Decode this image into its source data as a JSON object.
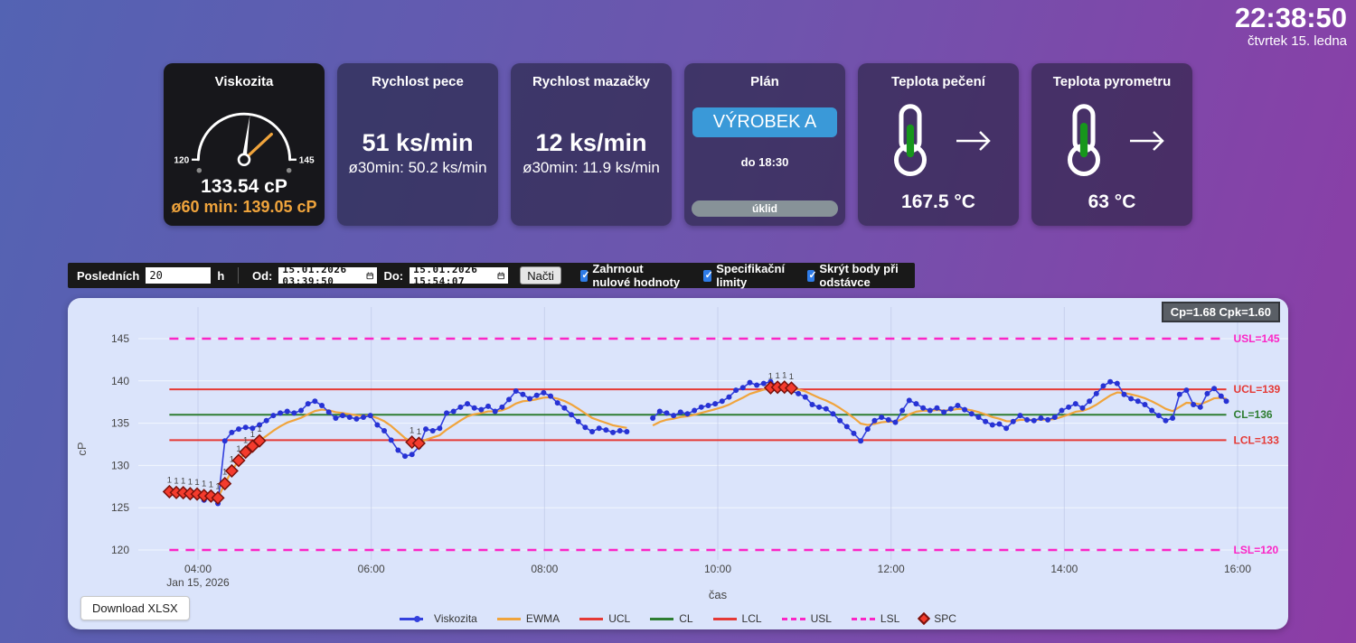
{
  "clock": {
    "time": "22:38:50",
    "date": "čtvrtek 15. ledna"
  },
  "tiles": {
    "viskozita": {
      "title": "Viskozita",
      "gauge_min": 120,
      "gauge_max": 145,
      "value": 133.54,
      "avg_value": 139.05,
      "value_label": "133.54 cP",
      "avg_label": "ø60 min: 139.05 cP",
      "min_label": "120",
      "max_label": "145"
    },
    "rychlost_pece": {
      "title": "Rychlost pece",
      "value": "51 ks/min",
      "avg": "ø30min: 50.2 ks/min"
    },
    "rychlost_mazacky": {
      "title": "Rychlost mazačky",
      "value": "12 ks/min",
      "avg": "ø30min: 11.9 ks/min"
    },
    "plan": {
      "title": "Plán",
      "product": "VÝROBEK A",
      "until": "do 18:30",
      "next": "úklid"
    },
    "teplota_peceni": {
      "title": "Teplota pečení",
      "value": "167.5 °C"
    },
    "teplota_pyrometru": {
      "title": "Teplota pyrometru",
      "value": "63 °C"
    }
  },
  "toolbar": {
    "last_label": "Posledních",
    "hours_value": "20",
    "hours_unit": "h",
    "from_label": "Od:",
    "from_value": "15.01.2026 03:39:50",
    "to_label": "Do:",
    "to_value": "15.01.2026 15:54:07",
    "load_button": "Načti",
    "checkboxes": [
      {
        "label": "Zahrnout nulové hodnoty",
        "checked": true
      },
      {
        "label": "Specifikační limity",
        "checked": true
      },
      {
        "label": "Skrýt body při odstávce",
        "checked": true
      }
    ]
  },
  "chart_data": {
    "type": "line",
    "capability": "Cp=1.68 Cpk=1.60",
    "download_label": "Download XLSX",
    "xlabel": "čas",
    "ylabel": "cP",
    "ylim": [
      117.5,
      147.5
    ],
    "yticks": [
      120,
      125,
      130,
      135,
      140,
      145
    ],
    "xticks": [
      {
        "t": 4,
        "label": "04:00",
        "sub": "Jan 15, 2026"
      },
      {
        "t": 6,
        "label": "06:00"
      },
      {
        "t": 8,
        "label": "08:00"
      },
      {
        "t": 10,
        "label": "10:00"
      },
      {
        "t": 12,
        "label": "12:00"
      },
      {
        "t": 14,
        "label": "14:00"
      },
      {
        "t": 16,
        "label": "16:00"
      }
    ],
    "limits": {
      "USL": 145,
      "UCL": 139,
      "CL": 136,
      "LCL": 133,
      "LSL": 120
    },
    "limit_labels": {
      "USL": "USL=145",
      "UCL": "UCL=139",
      "CL": "CL=136",
      "LCL": "LCL=133",
      "LSL": "LSL=120"
    },
    "ewma_lambda": 0.25,
    "gap_threshold_hours": 0.15,
    "spc_point_label": "1",
    "colors": {
      "series": "#3340dd",
      "dot": "#2732d4",
      "ewma": "#f0a43c",
      "ucl_lcl": "#e53935",
      "cl": "#2e7d32",
      "usl_lsl": "#fb25c6",
      "spc_fill": "#f43b2d",
      "spc_stroke": "#7a120c",
      "axis_text": "#444444"
    },
    "series": [
      {
        "name": "Viskozita",
        "points": [
          [
            3.67,
            126.9
          ],
          [
            3.75,
            126.5
          ],
          [
            3.83,
            126.7
          ],
          [
            3.91,
            126.3
          ],
          [
            3.99,
            126.5
          ],
          [
            4.07,
            125.9
          ],
          [
            4.15,
            126.2
          ],
          [
            4.23,
            125.5
          ],
          [
            4.31,
            132.9
          ],
          [
            4.39,
            133.9
          ],
          [
            4.47,
            134.3
          ],
          [
            4.55,
            134.5
          ],
          [
            4.63,
            134.4
          ],
          [
            4.71,
            134.8
          ],
          [
            4.79,
            135.3
          ],
          [
            4.87,
            135.9
          ],
          [
            4.95,
            136.2
          ],
          [
            5.03,
            136.4
          ],
          [
            5.11,
            136.2
          ],
          [
            5.19,
            136.5
          ],
          [
            5.27,
            137.3
          ],
          [
            5.35,
            137.6
          ],
          [
            5.43,
            137.1
          ],
          [
            5.51,
            136.3
          ],
          [
            5.59,
            135.6
          ],
          [
            5.67,
            135.9
          ],
          [
            5.75,
            135.7
          ],
          [
            5.83,
            135.5
          ],
          [
            5.91,
            135.7
          ],
          [
            5.99,
            135.9
          ],
          [
            6.07,
            134.8
          ],
          [
            6.15,
            134.1
          ],
          [
            6.23,
            133.0
          ],
          [
            6.31,
            131.8
          ],
          [
            6.39,
            131.1
          ],
          [
            6.47,
            131.3
          ],
          [
            6.55,
            132.2
          ],
          [
            6.63,
            134.3
          ],
          [
            6.71,
            134.1
          ],
          [
            6.79,
            134.4
          ],
          [
            6.87,
            136.2
          ],
          [
            6.95,
            136.4
          ],
          [
            7.03,
            136.9
          ],
          [
            7.11,
            137.3
          ],
          [
            7.19,
            136.8
          ],
          [
            7.27,
            136.6
          ],
          [
            7.35,
            137.0
          ],
          [
            7.43,
            136.4
          ],
          [
            7.51,
            136.9
          ],
          [
            7.59,
            137.8
          ],
          [
            7.67,
            138.8
          ],
          [
            7.75,
            138.4
          ],
          [
            7.83,
            137.9
          ],
          [
            7.91,
            138.3
          ],
          [
            7.99,
            138.6
          ],
          [
            8.07,
            138.2
          ],
          [
            8.15,
            137.4
          ],
          [
            8.23,
            136.8
          ],
          [
            8.31,
            136.0
          ],
          [
            8.39,
            135.2
          ],
          [
            8.47,
            134.5
          ],
          [
            8.55,
            134.0
          ],
          [
            8.63,
            134.4
          ],
          [
            8.71,
            134.2
          ],
          [
            8.79,
            133.9
          ],
          [
            8.87,
            134.1
          ],
          [
            8.95,
            134.0
          ],
          [
            9.25,
            135.6
          ],
          [
            9.33,
            136.4
          ],
          [
            9.41,
            136.2
          ],
          [
            9.49,
            135.9
          ],
          [
            9.57,
            136.3
          ],
          [
            9.65,
            136.1
          ],
          [
            9.73,
            136.5
          ],
          [
            9.81,
            136.9
          ],
          [
            9.89,
            137.1
          ],
          [
            9.97,
            137.3
          ],
          [
            10.05,
            137.6
          ],
          [
            10.13,
            138.1
          ],
          [
            10.21,
            138.9
          ],
          [
            10.29,
            139.2
          ],
          [
            10.37,
            139.8
          ],
          [
            10.45,
            139.5
          ],
          [
            10.53,
            139.7
          ],
          [
            10.61,
            139.9
          ],
          [
            10.69,
            139.4
          ],
          [
            10.77,
            139.3
          ],
          [
            10.85,
            138.8
          ],
          [
            10.93,
            138.5
          ],
          [
            11.01,
            138.1
          ],
          [
            11.09,
            137.2
          ],
          [
            11.17,
            136.9
          ],
          [
            11.25,
            136.7
          ],
          [
            11.33,
            136.1
          ],
          [
            11.41,
            135.3
          ],
          [
            11.49,
            134.6
          ],
          [
            11.57,
            133.8
          ],
          [
            11.65,
            132.9
          ],
          [
            11.73,
            134.3
          ],
          [
            11.81,
            135.3
          ],
          [
            11.89,
            135.7
          ],
          [
            11.97,
            135.4
          ],
          [
            12.05,
            135.1
          ],
          [
            12.13,
            136.5
          ],
          [
            12.21,
            137.7
          ],
          [
            12.29,
            137.3
          ],
          [
            12.37,
            136.8
          ],
          [
            12.45,
            136.5
          ],
          [
            12.53,
            136.8
          ],
          [
            12.61,
            136.3
          ],
          [
            12.69,
            136.7
          ],
          [
            12.77,
            137.1
          ],
          [
            12.85,
            136.6
          ],
          [
            12.93,
            136.1
          ],
          [
            13.01,
            135.7
          ],
          [
            13.09,
            135.2
          ],
          [
            13.17,
            134.8
          ],
          [
            13.25,
            134.9
          ],
          [
            13.33,
            134.4
          ],
          [
            13.41,
            135.2
          ],
          [
            13.49,
            135.9
          ],
          [
            13.57,
            135.4
          ],
          [
            13.65,
            135.3
          ],
          [
            13.73,
            135.6
          ],
          [
            13.81,
            135.4
          ],
          [
            13.89,
            135.7
          ],
          [
            13.97,
            136.5
          ],
          [
            14.05,
            136.9
          ],
          [
            14.13,
            137.3
          ],
          [
            14.21,
            136.8
          ],
          [
            14.29,
            137.6
          ],
          [
            14.37,
            138.5
          ],
          [
            14.45,
            139.4
          ],
          [
            14.53,
            139.9
          ],
          [
            14.61,
            139.7
          ],
          [
            14.69,
            138.4
          ],
          [
            14.77,
            137.9
          ],
          [
            14.85,
            137.6
          ],
          [
            14.93,
            137.2
          ],
          [
            15.01,
            136.5
          ],
          [
            15.09,
            135.9
          ],
          [
            15.17,
            135.3
          ],
          [
            15.25,
            135.6
          ],
          [
            15.33,
            138.4
          ],
          [
            15.41,
            138.9
          ],
          [
            15.49,
            137.2
          ],
          [
            15.57,
            136.9
          ],
          [
            15.65,
            138.5
          ],
          [
            15.73,
            139.1
          ],
          [
            15.81,
            138.2
          ],
          [
            15.87,
            137.6
          ]
        ]
      }
    ],
    "legend": [
      {
        "label": "Viskozita",
        "style": "line-dot",
        "color": "#3340dd"
      },
      {
        "label": "EWMA",
        "style": "line",
        "color": "#f0a43c"
      },
      {
        "label": "UCL",
        "style": "line",
        "color": "#e53935"
      },
      {
        "label": "CL",
        "style": "line",
        "color": "#2e7d32"
      },
      {
        "label": "LCL",
        "style": "line",
        "color": "#e53935"
      },
      {
        "label": "USL",
        "style": "dash",
        "color": "#fb25c6"
      },
      {
        "label": "LSL",
        "style": "dash",
        "color": "#fb25c6"
      },
      {
        "label": "SPC",
        "style": "diamond",
        "color": "#f43b2d"
      }
    ]
  }
}
